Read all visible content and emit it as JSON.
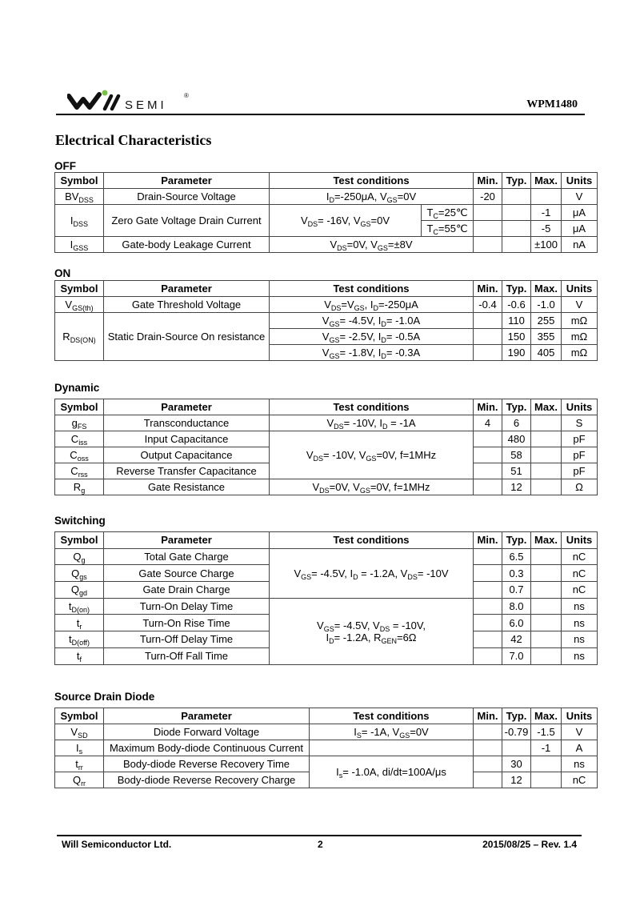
{
  "header": {
    "logo_text": "SEMI",
    "logo_mark": "®",
    "part_number": "WPM1480",
    "brand_color": "#7ac143"
  },
  "title": "Electrical Characteristics",
  "columns": {
    "symbol": "Symbol",
    "parameter": "Parameter",
    "conditions": "Test conditions",
    "min": "Min.",
    "typ": "Typ.",
    "max": "Max.",
    "units": "Units"
  },
  "tables": [
    {
      "id": "off",
      "label": "OFF",
      "rows": [
        {
          "symbol": [
            {
              "text": "BV"
            },
            {
              "sub": "DSS"
            }
          ],
          "parameter": "Drain-Source Voltage",
          "conditions": [
            {
              "text": "I"
            },
            {
              "sub": "D"
            },
            {
              "text": "=-250μA, V"
            },
            {
              "sub": "GS"
            },
            {
              "text": "=0V"
            }
          ],
          "min": "-20",
          "typ": "",
          "max": "",
          "units": "V"
        },
        {
          "symbol": [
            {
              "text": "I"
            },
            {
              "sub": "DSS"
            }
          ],
          "parameter": "Zero Gate Voltage Drain Current",
          "conditions": [
            {
              "text": "V"
            },
            {
              "sub": "DS"
            },
            {
              "text": "= -16V, V"
            },
            {
              "sub": "GS"
            },
            {
              "text": "=0V"
            }
          ],
          "tc": [
            {
              "text": "T"
            },
            {
              "sub": "C"
            },
            {
              "text": "=25℃"
            }
          ],
          "min": "",
          "typ": "",
          "max": "-1",
          "units": "μA"
        },
        {
          "symbol": null,
          "parameter": null,
          "conditions": null,
          "tc": [
            {
              "text": "T"
            },
            {
              "sub": "C"
            },
            {
              "text": "=55℃"
            }
          ],
          "min": "",
          "typ": "",
          "max": "-5",
          "units": "μA"
        },
        {
          "symbol": [
            {
              "text": "I"
            },
            {
              "sub": "GSS"
            }
          ],
          "parameter": "Gate-body Leakage Current",
          "conditions": [
            {
              "text": "V"
            },
            {
              "sub": "DS"
            },
            {
              "text": "=0V, V"
            },
            {
              "sub": "GS"
            },
            {
              "text": "=±8V"
            }
          ],
          "min": "",
          "typ": "",
          "max": "±100",
          "units": "nA"
        }
      ]
    },
    {
      "id": "on",
      "label": "ON",
      "rows": [
        {
          "symbol": [
            {
              "text": "V"
            },
            {
              "sub": "GS(th)"
            }
          ],
          "parameter": "Gate Threshold Voltage",
          "conditions": [
            {
              "text": "V"
            },
            {
              "sub": "DS"
            },
            {
              "text": "=V"
            },
            {
              "sub": "GS"
            },
            {
              "text": ",    I"
            },
            {
              "sub": "D"
            },
            {
              "text": "=-250μA"
            }
          ],
          "min": "-0.4",
          "typ": "-0.6",
          "max": "-1.0",
          "units": "V"
        },
        {
          "symbol": [
            {
              "text": "R"
            },
            {
              "sub": "DS(ON)"
            }
          ],
          "parameter": "Static Drain-Source On resistance",
          "conditions": [
            {
              "text": "V"
            },
            {
              "sub": "GS"
            },
            {
              "text": "= -4.5V, I"
            },
            {
              "sub": "D"
            },
            {
              "text": "= -1.0A"
            }
          ],
          "min": "",
          "typ": "110",
          "max": "255",
          "units": "mΩ"
        },
        {
          "symbol": null,
          "parameter": null,
          "conditions": [
            {
              "text": "V"
            },
            {
              "sub": "GS"
            },
            {
              "text": "= -2.5V, I"
            },
            {
              "sub": "D"
            },
            {
              "text": "= -0.5A"
            }
          ],
          "min": "",
          "typ": "150",
          "max": "355",
          "units": "mΩ"
        },
        {
          "symbol": null,
          "parameter": null,
          "conditions": [
            {
              "text": "V"
            },
            {
              "sub": "GS"
            },
            {
              "text": "= -1.8V, I"
            },
            {
              "sub": "D"
            },
            {
              "text": "= -0.3A"
            }
          ],
          "min": "",
          "typ": "190",
          "max": "405",
          "units": "mΩ"
        }
      ]
    },
    {
      "id": "dynamic",
      "label": "Dynamic",
      "rows": [
        {
          "symbol": [
            {
              "text": "g"
            },
            {
              "sub": "FS"
            }
          ],
          "parameter": "Transconductance",
          "conditions": [
            {
              "text": "V"
            },
            {
              "sub": "DS"
            },
            {
              "text": "= -10V, I"
            },
            {
              "sub": "D"
            },
            {
              "text": " = -1A"
            }
          ],
          "min": "4",
          "typ": "6",
          "max": "",
          "units": "S"
        },
        {
          "symbol": [
            {
              "text": "C"
            },
            {
              "sub": "iss"
            }
          ],
          "parameter": "Input Capacitance",
          "conditions": [
            {
              "text": "V"
            },
            {
              "sub": "DS"
            },
            {
              "text": "= -10V, V"
            },
            {
              "sub": "GS"
            },
            {
              "text": "=0V, f=1MHz"
            }
          ],
          "min": "",
          "typ": "480",
          "max": "",
          "units": "pF"
        },
        {
          "symbol": [
            {
              "text": "C"
            },
            {
              "sub": "oss"
            }
          ],
          "parameter": "Output Capacitance",
          "conditions": null,
          "min": "",
          "typ": "58",
          "max": "",
          "units": "pF"
        },
        {
          "symbol": [
            {
              "text": "C"
            },
            {
              "sub": "rss"
            }
          ],
          "parameter": "Reverse Transfer Capacitance",
          "conditions": null,
          "min": "",
          "typ": "51",
          "max": "",
          "units": "pF"
        },
        {
          "symbol": [
            {
              "text": "R"
            },
            {
              "sub": "g"
            }
          ],
          "parameter": "Gate Resistance",
          "conditions": [
            {
              "text": "V"
            },
            {
              "sub": "DS"
            },
            {
              "text": "=0V, V"
            },
            {
              "sub": "GS"
            },
            {
              "text": "=0V, f=1MHz"
            }
          ],
          "min": "",
          "typ": "12",
          "max": "",
          "units": "Ω"
        }
      ]
    },
    {
      "id": "switching",
      "label": "Switching",
      "rows": [
        {
          "symbol": [
            {
              "text": "Q"
            },
            {
              "sub": "g"
            }
          ],
          "parameter": "Total Gate Charge",
          "conditions": [
            {
              "text": "V"
            },
            {
              "sub": "GS"
            },
            {
              "text": "= -4.5V, I"
            },
            {
              "sub": "D"
            },
            {
              "text": " = -1.2A, V"
            },
            {
              "sub": "DS"
            },
            {
              "text": "= -10V"
            }
          ],
          "min": "",
          "typ": "6.5",
          "max": "",
          "units": "nC"
        },
        {
          "symbol": [
            {
              "text": "Q"
            },
            {
              "sub": "gs"
            }
          ],
          "parameter": "Gate Source Charge",
          "conditions": null,
          "min": "",
          "typ": "0.3",
          "max": "",
          "units": "nC"
        },
        {
          "symbol": [
            {
              "text": "Q"
            },
            {
              "sub": "gd"
            }
          ],
          "parameter": "Gate Drain Charge",
          "conditions": null,
          "min": "",
          "typ": "0.7",
          "max": "",
          "units": "nC"
        },
        {
          "symbol": [
            {
              "text": "t"
            },
            {
              "sub": "D(on)"
            }
          ],
          "parameter": "Turn-On Delay Time",
          "conditions": [
            {
              "text": "V"
            },
            {
              "sub": "GS"
            },
            {
              "text": "= -4.5V, V"
            },
            {
              "sub": "DS"
            },
            {
              "text": " = -10V,"
            },
            {
              "br": true
            },
            {
              "text": "I"
            },
            {
              "sub": "D"
            },
            {
              "text": "= -1.2A, R"
            },
            {
              "sub": "GEN"
            },
            {
              "text": "=6Ω"
            }
          ],
          "min": "",
          "typ": "8.0",
          "max": "",
          "units": "ns"
        },
        {
          "symbol": [
            {
              "text": "t"
            },
            {
              "sub": "r"
            }
          ],
          "parameter": "Turn-On Rise Time",
          "conditions": null,
          "min": "",
          "typ": "6.0",
          "max": "",
          "units": "ns"
        },
        {
          "symbol": [
            {
              "text": "t"
            },
            {
              "sub": "D(off)"
            }
          ],
          "parameter": "Turn-Off Delay Time",
          "conditions": null,
          "min": "",
          "typ": "42",
          "max": "",
          "units": "ns"
        },
        {
          "symbol": [
            {
              "text": "t"
            },
            {
              "sub": "f"
            }
          ],
          "parameter": "Turn-Off Fall Time",
          "conditions": null,
          "min": "",
          "typ": "7.0",
          "max": "",
          "units": "ns"
        }
      ]
    },
    {
      "id": "source-drain-diode",
      "label": "Source Drain Diode",
      "rows": [
        {
          "symbol": [
            {
              "text": "V"
            },
            {
              "sub": "SD"
            }
          ],
          "parameter": "Diode Forward Voltage",
          "conditions": [
            {
              "text": "I"
            },
            {
              "sub": "S"
            },
            {
              "text": "= -1A, V"
            },
            {
              "sub": "GS"
            },
            {
              "text": "=0V"
            }
          ],
          "min": "",
          "typ": "-0.79",
          "max": "-1.5",
          "units": "V"
        },
        {
          "symbol": [
            {
              "text": "I"
            },
            {
              "sub": "s"
            }
          ],
          "parameter": "Maximum Body-diode Continuous Current",
          "conditions": "",
          "min": "",
          "typ": "",
          "max": "-1",
          "units": "A"
        },
        {
          "symbol": [
            {
              "text": "t"
            },
            {
              "sub": "rr"
            }
          ],
          "parameter": "Body-diode Reverse Recovery Time",
          "conditions": [
            {
              "text": "I"
            },
            {
              "sub": "s"
            },
            {
              "text": "= -1.0A, di/dt=100A/μs"
            }
          ],
          "min": "",
          "typ": "30",
          "max": "",
          "units": "ns"
        },
        {
          "symbol": [
            {
              "text": "Q"
            },
            {
              "sub": "rr"
            }
          ],
          "parameter": "Body-diode Reverse Recovery Charge",
          "conditions": null,
          "min": "",
          "typ": "12",
          "max": "",
          "units": "nC"
        }
      ]
    }
  ],
  "footer": {
    "company": "Will Semiconductor Ltd.",
    "page": "2",
    "date_rev": "2015/08/25 – Rev. 1.4"
  }
}
